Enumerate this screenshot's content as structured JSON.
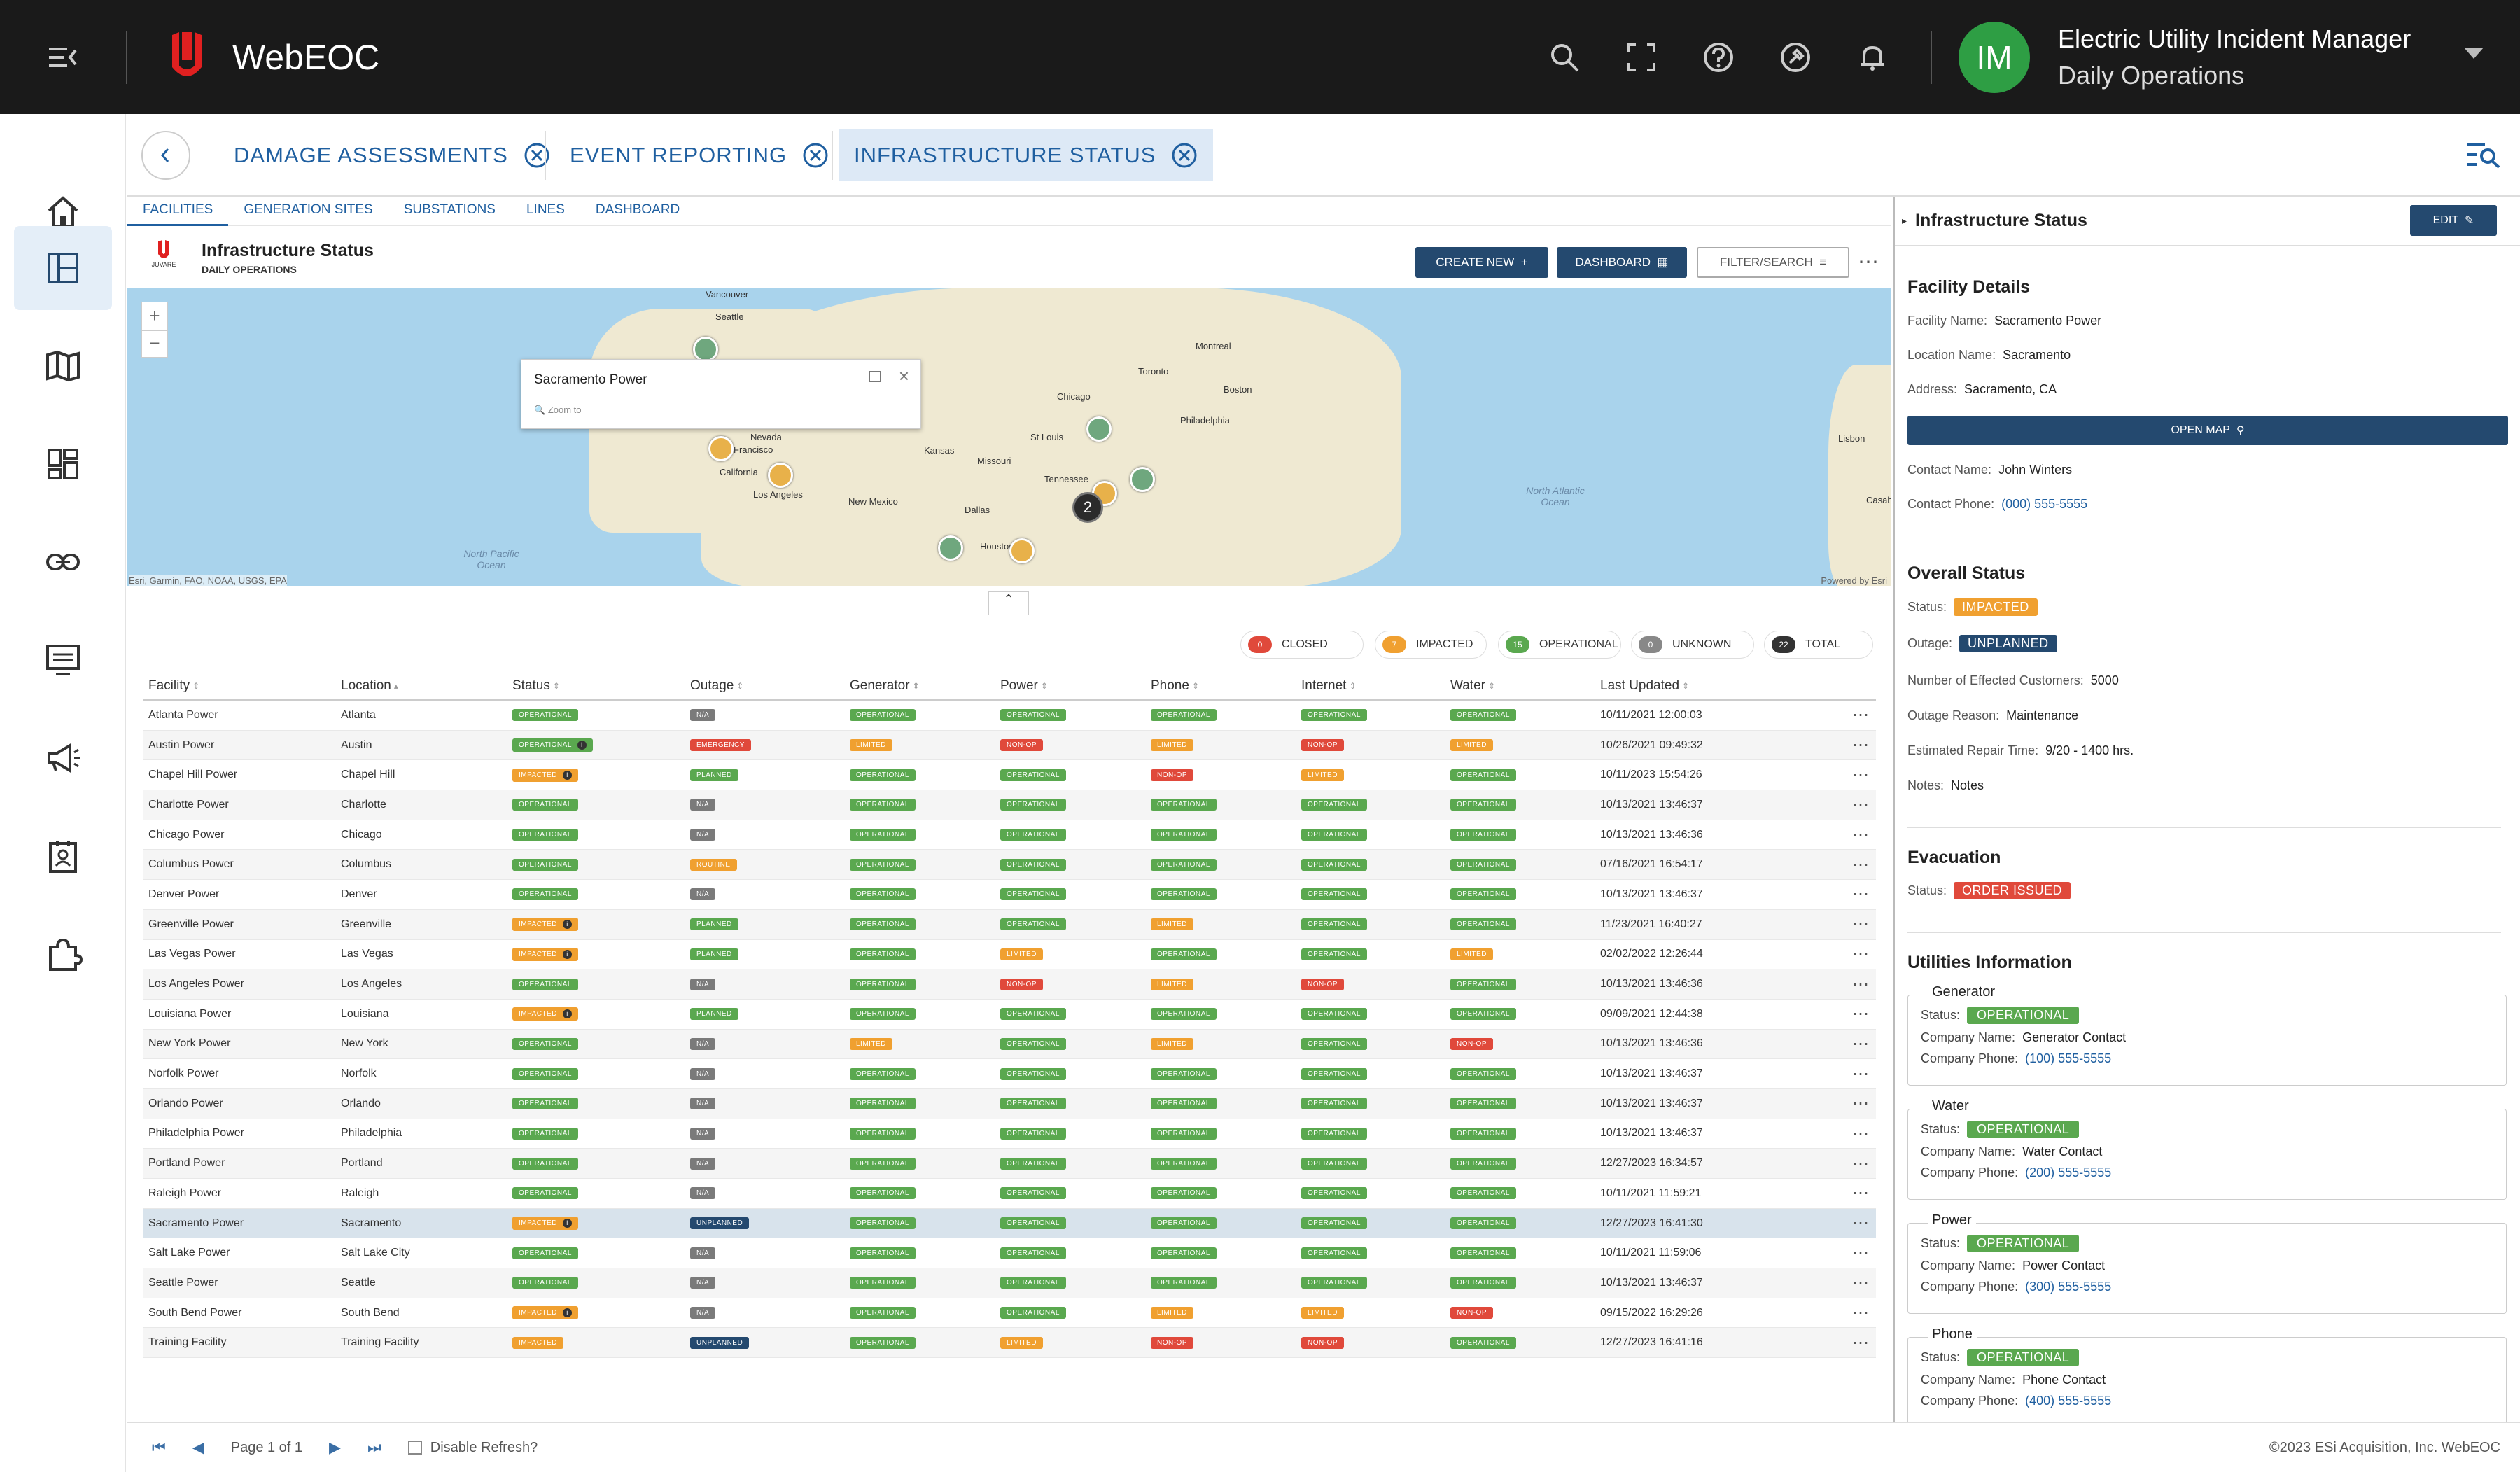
{
  "app": {
    "name": "WebEOC",
    "user_initials": "IM",
    "user_title": "Electric Utility Incident Manager",
    "user_subtitle": "Daily Operations"
  },
  "tabs": [
    {
      "label": "DAMAGE ASSESSMENTS",
      "active": false
    },
    {
      "label": "EVENT REPORTING",
      "active": false
    },
    {
      "label": "INFRASTRUCTURE STATUS",
      "active": true
    }
  ],
  "subtabs": [
    "FACILITIES",
    "GENERATION SITES",
    "SUBSTATIONS",
    "LINES",
    "DASHBOARD"
  ],
  "board": {
    "logo_text": "JUVARE",
    "title": "Infrastructure Status",
    "subtitle": "DAILY OPERATIONS"
  },
  "actions": {
    "create_new": "CREATE NEW",
    "dashboard": "DASHBOARD",
    "filter_search": "FILTER/SEARCH"
  },
  "map": {
    "popup_title": "Sacramento Power",
    "popup_zoom": "Zoom to",
    "attribution": "Esri, Garmin, FAO, NOAA, USGS, EPA",
    "powered_by": "Powered by Esri",
    "cluster_count": "2",
    "labels": {
      "vancouver": "Vancouver",
      "seattle": "Seattle",
      "francisco": "Francisco",
      "los_angeles": "Los Angeles",
      "california": "California",
      "nevada": "Nevada",
      "dallas": "Dallas",
      "houston": "Houston",
      "chicago": "Chicago",
      "st_louis": "St Louis",
      "toronto": "Toronto",
      "montreal": "Montreal",
      "boston": "Boston",
      "philadelphia": "Philadelphia",
      "kansas": "Kansas",
      "missouri": "Missouri",
      "new_mexico": "New Mexico",
      "tennessee": "Tennessee",
      "lisbon": "Lisbon",
      "casablanca": "Casabla"
    },
    "oceans": {
      "north_atlantic": "North Atlantic Ocean",
      "north_pacific": "North Pacific Ocean"
    }
  },
  "legend": [
    {
      "count": "0",
      "label": "CLOSED",
      "color": "#e0493b"
    },
    {
      "count": "7",
      "label": "IMPACTED",
      "color": "#f0a030"
    },
    {
      "count": "15",
      "label": "OPERATIONAL",
      "color": "#5aa84f"
    },
    {
      "count": "0",
      "label": "UNKNOWN",
      "color": "#888888"
    },
    {
      "count": "22",
      "label": "TOTAL",
      "color": "#333333"
    }
  ],
  "table": {
    "headers": [
      "Facility",
      "Location",
      "Status",
      "Outage",
      "Generator",
      "Power",
      "Phone",
      "Internet",
      "Water",
      "Last Updated"
    ],
    "rows": [
      {
        "facility": "Atlanta Power",
        "location": "Atlanta",
        "status": "OPERATIONAL",
        "outage": "N/A",
        "generator": "OPERATIONAL",
        "power": "OPERATIONAL",
        "phone": "OPERATIONAL",
        "internet": "OPERATIONAL",
        "water": "OPERATIONAL",
        "updated": "10/11/2021 12:00:03"
      },
      {
        "facility": "Austin Power",
        "location": "Austin",
        "status": "OPERATIONAL",
        "outage": "EMERGENCY",
        "generator": "LIMITED",
        "power": "NON-OP",
        "phone": "LIMITED",
        "internet": "NON-OP",
        "water": "LIMITED",
        "updated": "10/26/2021 09:49:32"
      },
      {
        "facility": "Chapel Hill Power",
        "location": "Chapel Hill",
        "status": "IMPACTED",
        "outage": "PLANNED",
        "generator": "OPERATIONAL",
        "power": "OPERATIONAL",
        "phone": "NON-OP",
        "internet": "LIMITED",
        "water": "OPERATIONAL",
        "updated": "10/11/2023 15:54:26"
      },
      {
        "facility": "Charlotte Power",
        "location": "Charlotte",
        "status": "OPERATIONAL",
        "outage": "N/A",
        "generator": "OPERATIONAL",
        "power": "OPERATIONAL",
        "phone": "OPERATIONAL",
        "internet": "OPERATIONAL",
        "water": "OPERATIONAL",
        "updated": "10/13/2021 13:46:37"
      },
      {
        "facility": "Chicago Power",
        "location": "Chicago",
        "status": "OPERATIONAL",
        "outage": "N/A",
        "generator": "OPERATIONAL",
        "power": "OPERATIONAL",
        "phone": "OPERATIONAL",
        "internet": "OPERATIONAL",
        "water": "OPERATIONAL",
        "updated": "10/13/2021 13:46:36"
      },
      {
        "facility": "Columbus Power",
        "location": "Columbus",
        "status": "OPERATIONAL",
        "outage": "ROUTINE",
        "generator": "OPERATIONAL",
        "power": "OPERATIONAL",
        "phone": "OPERATIONAL",
        "internet": "OPERATIONAL",
        "water": "OPERATIONAL",
        "updated": "07/16/2021 16:54:17"
      },
      {
        "facility": "Denver Power",
        "location": "Denver",
        "status": "OPERATIONAL",
        "outage": "N/A",
        "generator": "OPERATIONAL",
        "power": "OPERATIONAL",
        "phone": "OPERATIONAL",
        "internet": "OPERATIONAL",
        "water": "OPERATIONAL",
        "updated": "10/13/2021 13:46:37"
      },
      {
        "facility": "Greenville Power",
        "location": "Greenville",
        "status": "IMPACTED",
        "outage": "PLANNED",
        "generator": "OPERATIONAL",
        "power": "OPERATIONAL",
        "phone": "LIMITED",
        "internet": "OPERATIONAL",
        "water": "OPERATIONAL",
        "updated": "11/23/2021 16:40:27"
      },
      {
        "facility": "Las Vegas Power",
        "location": "Las Vegas",
        "status": "IMPACTED",
        "outage": "PLANNED",
        "generator": "OPERATIONAL",
        "power": "LIMITED",
        "phone": "OPERATIONAL",
        "internet": "OPERATIONAL",
        "water": "LIMITED",
        "updated": "02/02/2022 12:26:44"
      },
      {
        "facility": "Los Angeles Power",
        "location": "Los Angeles",
        "status": "OPERATIONAL",
        "outage": "N/A",
        "generator": "OPERATIONAL",
        "power": "NON-OP",
        "phone": "LIMITED",
        "internet": "NON-OP",
        "water": "OPERATIONAL",
        "updated": "10/13/2021 13:46:36"
      },
      {
        "facility": "Louisiana Power",
        "location": "Louisiana",
        "status": "IMPACTED",
        "outage": "PLANNED",
        "generator": "OPERATIONAL",
        "power": "OPERATIONAL",
        "phone": "OPERATIONAL",
        "internet": "OPERATIONAL",
        "water": "OPERATIONAL",
        "updated": "09/09/2021 12:44:38"
      },
      {
        "facility": "New York Power",
        "location": "New York",
        "status": "OPERATIONAL",
        "outage": "N/A",
        "generator": "LIMITED",
        "power": "OPERATIONAL",
        "phone": "LIMITED",
        "internet": "OPERATIONAL",
        "water": "NON-OP",
        "updated": "10/13/2021 13:46:36"
      },
      {
        "facility": "Norfolk Power",
        "location": "Norfolk",
        "status": "OPERATIONAL",
        "outage": "N/A",
        "generator": "OPERATIONAL",
        "power": "OPERATIONAL",
        "phone": "OPERATIONAL",
        "internet": "OPERATIONAL",
        "water": "OPERATIONAL",
        "updated": "10/13/2021 13:46:37"
      },
      {
        "facility": "Orlando Power",
        "location": "Orlando",
        "status": "OPERATIONAL",
        "outage": "N/A",
        "generator": "OPERATIONAL",
        "power": "OPERATIONAL",
        "phone": "OPERATIONAL",
        "internet": "OPERATIONAL",
        "water": "OPERATIONAL",
        "updated": "10/13/2021 13:46:37"
      },
      {
        "facility": "Philadelphia Power",
        "location": "Philadelphia",
        "status": "OPERATIONAL",
        "outage": "N/A",
        "generator": "OPERATIONAL",
        "power": "OPERATIONAL",
        "phone": "OPERATIONAL",
        "internet": "OPERATIONAL",
        "water": "OPERATIONAL",
        "updated": "10/13/2021 13:46:37"
      },
      {
        "facility": "Portland Power",
        "location": "Portland",
        "status": "OPERATIONAL",
        "outage": "N/A",
        "generator": "OPERATIONAL",
        "power": "OPERATIONAL",
        "phone": "OPERATIONAL",
        "internet": "OPERATIONAL",
        "water": "OPERATIONAL",
        "updated": "12/27/2023 16:34:57"
      },
      {
        "facility": "Raleigh Power",
        "location": "Raleigh",
        "status": "OPERATIONAL",
        "outage": "N/A",
        "generator": "OPERATIONAL",
        "power": "OPERATIONAL",
        "phone": "OPERATIONAL",
        "internet": "OPERATIONAL",
        "water": "OPERATIONAL",
        "updated": "10/11/2021 11:59:21"
      },
      {
        "facility": "Sacramento Power",
        "location": "Sacramento",
        "status": "IMPACTED",
        "outage": "UNPLANNED",
        "generator": "OPERATIONAL",
        "power": "OPERATIONAL",
        "phone": "OPERATIONAL",
        "internet": "OPERATIONAL",
        "water": "OPERATIONAL",
        "updated": "12/27/2023 16:41:30"
      },
      {
        "facility": "Salt Lake Power",
        "location": "Salt Lake City",
        "status": "OPERATIONAL",
        "outage": "N/A",
        "generator": "OPERATIONAL",
        "power": "OPERATIONAL",
        "phone": "OPERATIONAL",
        "internet": "OPERATIONAL",
        "water": "OPERATIONAL",
        "updated": "10/11/2021 11:59:06"
      },
      {
        "facility": "Seattle Power",
        "location": "Seattle",
        "status": "OPERATIONAL",
        "outage": "N/A",
        "generator": "OPERATIONAL",
        "power": "OPERATIONAL",
        "phone": "OPERATIONAL",
        "internet": "OPERATIONAL",
        "water": "OPERATIONAL",
        "updated": "10/13/2021 13:46:37"
      },
      {
        "facility": "South Bend Power",
        "location": "South Bend",
        "status": "IMPACTED",
        "outage": "N/A",
        "generator": "OPERATIONAL",
        "power": "OPERATIONAL",
        "phone": "LIMITED",
        "internet": "LIMITED",
        "water": "NON-OP",
        "updated": "09/15/2022 16:29:26"
      },
      {
        "facility": "Training Facility",
        "location": "Training Facility",
        "status": "IMPACTED",
        "outage": "UNPLANNED",
        "generator": "OPERATIONAL",
        "power": "LIMITED",
        "phone": "NON-OP",
        "internet": "NON-OP",
        "water": "OPERATIONAL",
        "updated": "12/27/2023 16:41:16"
      }
    ]
  },
  "footer": {
    "page_text": "Page 1 of 1",
    "disable_refresh": "Disable Refresh?",
    "copyright": "©2023 ESi Acquisition, Inc. WebEOC"
  },
  "details": {
    "panel_title": "Infrastructure Status",
    "edit": "EDIT",
    "facility_details": "Facility Details",
    "facility_name_label": "Facility Name:",
    "facility_name": "Sacramento Power",
    "location_label": "Location Name:",
    "location": "Sacramento",
    "address_label": "Address:",
    "address": "Sacramento, CA",
    "open_map": "OPEN MAP",
    "contact_name_label": "Contact Name:",
    "contact_name": "John Winters",
    "contact_phone_label": "Contact Phone:",
    "contact_phone": "(000) 555-5555",
    "overall_status": "Overall Status",
    "status_label": "Status:",
    "status": "IMPACTED",
    "outage_label": "Outage:",
    "outage": "UNPLANNED",
    "customers_label": "Number of Effected Customers:",
    "customers": "5000",
    "reason_label": "Outage Reason:",
    "reason": "Maintenance",
    "repair_label": "Estimated Repair Time:",
    "repair": "9/20 - 1400 hrs.",
    "notes_label": "Notes:",
    "notes": "Notes",
    "evacuation": "Evacuation",
    "evac_status_label": "Status:",
    "evac_status": "ORDER ISSUED",
    "utilities": "Utilities Information",
    "utility_list": [
      {
        "name": "Generator",
        "status": "OPERATIONAL",
        "company": "Generator Contact",
        "phone": "(100) 555-5555"
      },
      {
        "name": "Water",
        "status": "OPERATIONAL",
        "company": "Water Contact",
        "phone": "(200) 555-5555"
      },
      {
        "name": "Power",
        "status": "OPERATIONAL",
        "company": "Power Contact",
        "phone": "(300) 555-5555"
      },
      {
        "name": "Phone",
        "status": "OPERATIONAL",
        "company": "Phone Contact",
        "phone": "(400) 555-5555"
      }
    ],
    "util_status_label": "Status:",
    "util_company_label": "Company Name:",
    "util_phone_label": "Company Phone:"
  },
  "colors": {
    "OPERATIONAL": "#5aa84f",
    "N/A": "#7a7a7a",
    "EMERGENCY": "#e0493b",
    "LIMITED": "#f0a030",
    "NON-OP": "#e0493b",
    "IMPACTED": "#f0a030",
    "PLANNED": "#5aa84f",
    "ROUTINE": "#f0a030",
    "UNPLANNED": "#24496f",
    "ORDER ISSUED": "#e0493b"
  }
}
